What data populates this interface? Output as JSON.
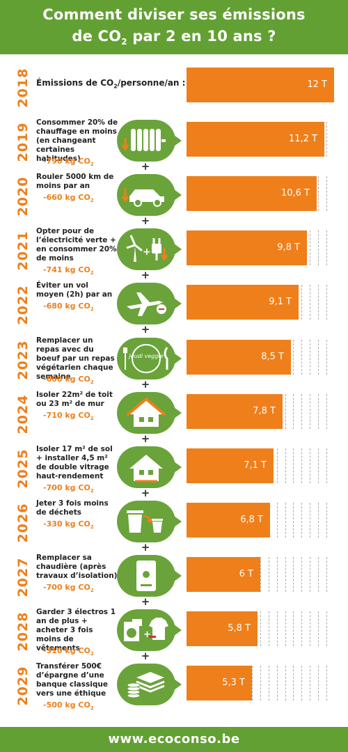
{
  "header": {
    "line1": "Comment diviser ses émissions",
    "line2_pre": "de CO",
    "line2_sub": "2",
    "line2_post": " par 2 en 10 ans ?"
  },
  "emissions_label_pre": "Émissions de CO",
  "emissions_label_sub": "2",
  "emissions_label_post": "/personne/an :",
  "rows": [
    {
      "year": "2018",
      "desc": "",
      "saving": "",
      "value_label": "12 T",
      "icon": "none"
    },
    {
      "year": "2019",
      "desc": "Consommer 20% de chauffage en moins (en changeant certaines habitudes)",
      "saving_pre": "-790 kg CO",
      "saving_sub": "2",
      "value_label": "11,2 T",
      "icon": "radiator-icon"
    },
    {
      "year": "2020",
      "desc": "Rouler 5000 km de moins par an",
      "saving_pre": "-660 kg CO",
      "saving_sub": "2",
      "value_label": "10,6 T",
      "icon": "car-icon"
    },
    {
      "year": "2021",
      "desc": "Opter pour de l’électricité verte + en consommer 20% de moins",
      "saving_pre": "-741 kg CO",
      "saving_sub": "2",
      "value_label": "9,8 T",
      "icon": "wind-plug-icon"
    },
    {
      "year": "2022",
      "desc": "Éviter un vol moyen (2h) par an",
      "saving_pre": "-680 kg CO",
      "saving_sub": "2",
      "value_label": "9,1 T",
      "icon": "airplane-icon"
    },
    {
      "year": "2023",
      "desc": "Remplacer un repas avec du boeuf par un repas végétarien chaque semaine",
      "saving_pre": "-600 kg CO",
      "saving_sub": "2",
      "value_label": "8,5 T",
      "icon": "plate-icon",
      "icon_text": "Jeudi veggie"
    },
    {
      "year": "2024",
      "desc": "Isoler 22m² de toit ou 23 m² de mur",
      "saving_pre": "-710 kg CO",
      "saving_sub": "2",
      "value_label": "7,8 T",
      "icon": "house-roof-icon"
    },
    {
      "year": "2025",
      "desc": "Isoler 17 m² de sol + installer 4,5 m² de double vitrage haut-rendement",
      "saving_pre": "-700 kg CO",
      "saving_sub": "2",
      "value_label": "7,1 T",
      "icon": "house-icon"
    },
    {
      "year": "2026",
      "desc": "Jeter 3 fois moins de déchets",
      "saving_pre": "-330 kg CO",
      "saving_sub": "2",
      "value_label": "6,8 T",
      "icon": "trash-icon"
    },
    {
      "year": "2027",
      "desc": "Remplacer sa chaudière (après travaux d’isolation)",
      "saving_pre": "-700 kg CO",
      "saving_sub": "2",
      "value_label": "6 T",
      "icon": "boiler-icon"
    },
    {
      "year": "2028",
      "desc": "Garder 3 électros 1 an de plus + acheter 3 fois moins de vêtements",
      "saving_pre": "-310 kg CO",
      "saving_sub": "2",
      "value_label": "5,8 T",
      "icon": "appliances-icon"
    },
    {
      "year": "2029",
      "desc": "Transférer 500€ d’épargne d’une banque classique vers une éthique",
      "saving_pre": "-500 kg CO",
      "saving_sub": "2",
      "value_label": "5,3 T",
      "icon": "money-icon"
    }
  ],
  "footer": "www.ecoconso.be",
  "colors": {
    "green": "#62a033",
    "orange": "#ef7f1a"
  },
  "chart_data": {
    "type": "bar",
    "categories": [
      "2018",
      "2019",
      "2020",
      "2021",
      "2022",
      "2023",
      "2024",
      "2025",
      "2026",
      "2027",
      "2028",
      "2029"
    ],
    "values": [
      12,
      11.2,
      10.6,
      9.8,
      9.1,
      8.5,
      7.8,
      7.1,
      6.8,
      6,
      5.8,
      5.3
    ],
    "value_labels": [
      "12 T",
      "11,2 T",
      "10,6 T",
      "9,8 T",
      "9,1 T",
      "8,5 T",
      "7,8 T",
      "7,1 T",
      "6,8 T",
      "6 T",
      "5,8 T",
      "5,3 T"
    ],
    "savings_kg": [
      null,
      -790,
      -660,
      -741,
      -680,
      -600,
      -710,
      -700,
      -330,
      -700,
      -310,
      -500
    ],
    "orientation": "horizontal",
    "xlim": [
      0,
      12
    ]
  }
}
